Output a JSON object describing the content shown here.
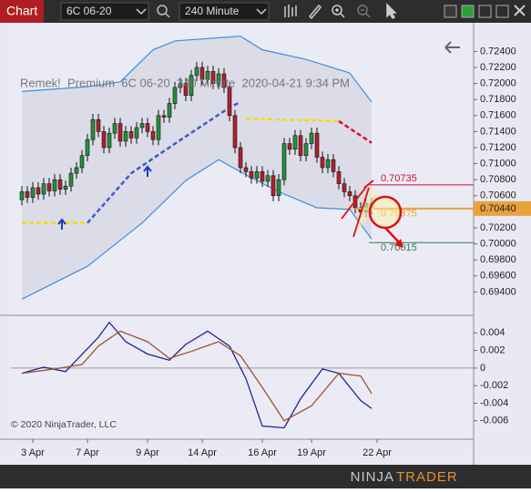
{
  "toolbar": {
    "tab": "Chart",
    "instrument": "6C 06-20",
    "interval": "240 Minute"
  },
  "chart_data": [
    {
      "type": "candlestick",
      "title": "Remek!  Premium  6C 06-20  240 Minute  2020-04-21 9:34 PM",
      "copyright": "© 2020 NinjaTrader, LLC",
      "open": [
        0.7055,
        0.7065,
        0.7058,
        0.707,
        0.7062,
        0.7075,
        0.7066,
        0.708,
        0.7068,
        0.7072,
        0.7088,
        0.7095,
        0.711,
        0.713,
        0.7155,
        0.714,
        0.712,
        0.7138,
        0.715,
        0.7128,
        0.714,
        0.7132,
        0.7145,
        0.715,
        0.714,
        0.713,
        0.716,
        0.7158,
        0.7175,
        0.7195,
        0.72,
        0.7185,
        0.721,
        0.722,
        0.7205,
        0.7215,
        0.72,
        0.7212,
        0.7195,
        0.716,
        0.712,
        0.7095,
        0.709,
        0.7082,
        0.709,
        0.7078,
        0.7085,
        0.706,
        0.708,
        0.7125,
        0.7118,
        0.7135,
        0.711,
        0.7125,
        0.7138,
        0.7108,
        0.7095,
        0.7105,
        0.709,
        0.7075,
        0.7065,
        0.706,
        0.7045,
        0.704,
        0.705
      ],
      "high": [
        0.7072,
        0.7072,
        0.7077,
        0.7077,
        0.7082,
        0.7082,
        0.7087,
        0.7087,
        0.7079,
        0.7095,
        0.7102,
        0.7117,
        0.7137,
        0.7162,
        0.7162,
        0.7147,
        0.7145,
        0.7157,
        0.7157,
        0.7147,
        0.7147,
        0.7152,
        0.7157,
        0.7157,
        0.7147,
        0.7167,
        0.7167,
        0.7182,
        0.7202,
        0.7207,
        0.7207,
        0.7217,
        0.7227,
        0.7227,
        0.7222,
        0.7222,
        0.7219,
        0.7219,
        0.7202,
        0.7167,
        0.7127,
        0.7102,
        0.7097,
        0.7097,
        0.7097,
        0.7092,
        0.7092,
        0.7087,
        0.7132,
        0.7132,
        0.7142,
        0.7142,
        0.7132,
        0.7145,
        0.7145,
        0.7115,
        0.7112,
        0.7112,
        0.7097,
        0.7082,
        0.7072,
        0.7067,
        0.7052,
        0.7057,
        0.7057
      ],
      "low": [
        0.7048,
        0.7051,
        0.7051,
        0.7055,
        0.7055,
        0.7059,
        0.7059,
        0.7061,
        0.7061,
        0.7065,
        0.7081,
        0.7088,
        0.7103,
        0.7123,
        0.7133,
        0.7113,
        0.7113,
        0.7131,
        0.7121,
        0.7121,
        0.7125,
        0.7125,
        0.7138,
        0.7133,
        0.7123,
        0.7123,
        0.7151,
        0.7151,
        0.7168,
        0.7188,
        0.7178,
        0.7178,
        0.7203,
        0.7198,
        0.7198,
        0.7193,
        0.7193,
        0.7188,
        0.7153,
        0.7113,
        0.7088,
        0.7083,
        0.7075,
        0.7075,
        0.7071,
        0.7071,
        0.7053,
        0.7053,
        0.7073,
        0.7111,
        0.7111,
        0.7103,
        0.7103,
        0.7118,
        0.7101,
        0.7088,
        0.7088,
        0.7083,
        0.7068,
        0.7058,
        0.7053,
        0.7038,
        0.7033,
        0.7033,
        0.7037
      ],
      "close": [
        0.7065,
        0.7058,
        0.707,
        0.7062,
        0.7075,
        0.7066,
        0.708,
        0.7068,
        0.7072,
        0.7088,
        0.7095,
        0.711,
        0.713,
        0.7155,
        0.714,
        0.712,
        0.7138,
        0.715,
        0.7128,
        0.714,
        0.7132,
        0.7145,
        0.715,
        0.714,
        0.713,
        0.716,
        0.7158,
        0.7175,
        0.7195,
        0.72,
        0.7185,
        0.721,
        0.722,
        0.7205,
        0.7215,
        0.72,
        0.7212,
        0.7195,
        0.716,
        0.712,
        0.7095,
        0.709,
        0.7082,
        0.709,
        0.7078,
        0.7085,
        0.706,
        0.708,
        0.7125,
        0.7118,
        0.7135,
        0.711,
        0.7125,
        0.7138,
        0.7108,
        0.7095,
        0.7105,
        0.709,
        0.7075,
        0.7065,
        0.706,
        0.7045,
        0.704,
        0.705,
        0.7044
      ],
      "up_color": "#23913c",
      "down_color": "#b3202c",
      "band_fill": "#dcdce8",
      "lines": [
        {
          "color": "#3d8fe0",
          "width": 1.2,
          "dash": false,
          "x": [
            0,
            12,
            18,
            24,
            28,
            40,
            44,
            52,
            60,
            64
          ],
          "values": [
            0.719,
            0.7196,
            0.7202,
            0.7242,
            0.7253,
            0.7259,
            0.7242,
            0.723,
            0.7213,
            0.7177
          ]
        },
        {
          "color": "#3d8fe0",
          "width": 1.2,
          "dash": false,
          "x": [
            0,
            12,
            22,
            30,
            36,
            41,
            47,
            54,
            60,
            64
          ],
          "values": [
            0.6931,
            0.6972,
            0.7026,
            0.7079,
            0.7105,
            0.7086,
            0.7065,
            0.7045,
            0.7043,
            0.7006
          ]
        },
        {
          "color": "#f0e000",
          "width": 2.5,
          "dash": true,
          "x": [
            0,
            12,
            null,
            41,
            58
          ],
          "values": [
            0.7026,
            0.7026,
            null,
            0.7156,
            0.7153
          ]
        },
        {
          "color": "#3a5bd0",
          "width": 2.5,
          "dash": true,
          "x": [
            12,
            20,
            30,
            38,
            40
          ],
          "values": [
            0.7026,
            0.7088,
            0.7134,
            0.717,
            0.7177
          ]
        },
        {
          "color": "#d8102e",
          "width": 2.5,
          "dash": true,
          "x": [
            58,
            64
          ],
          "values": [
            0.7153,
            0.7126
          ]
        }
      ],
      "current_price": {
        "value": 0.7044,
        "label": "0.70440",
        "color": "#e8a33d"
      },
      "levels": [
        {
          "value": 0.70735,
          "color": "#c8102e",
          "line": true
        },
        {
          "value": 0.70375,
          "color": "#e8a33d",
          "line": false
        },
        {
          "value": 0.70015,
          "color": "#2e7d4f",
          "line": true
        }
      ],
      "xlim": [
        -2,
        82
      ],
      "ylim": [
        0.6912,
        0.727
      ],
      "xticks": [
        {
          "value": 2,
          "label": "3 Apr"
        },
        {
          "value": 12,
          "label": "7 Apr"
        },
        {
          "value": 23,
          "label": "9 Apr"
        },
        {
          "value": 33,
          "label": "14 Apr"
        },
        {
          "value": 44,
          "label": "16 Apr"
        },
        {
          "value": 53,
          "label": "19 Apr"
        },
        {
          "value": 65,
          "label": "22 Apr"
        }
      ],
      "yticks": [
        {
          "value": 0.724,
          "label": "0.72400"
        },
        {
          "value": 0.722,
          "label": "0.72200"
        },
        {
          "value": 0.72,
          "label": "0.72000"
        },
        {
          "value": 0.718,
          "label": "0.71800"
        },
        {
          "value": 0.716,
          "label": "0.71600"
        },
        {
          "value": 0.714,
          "label": "0.71400"
        },
        {
          "value": 0.712,
          "label": "0.71200"
        },
        {
          "value": 0.71,
          "label": "0.71000"
        },
        {
          "value": 0.708,
          "label": "0.70800"
        },
        {
          "value": 0.706,
          "label": "0.70600"
        },
        {
          "value": 0.704,
          "label": "0.70400"
        },
        {
          "value": 0.702,
          "label": "0.70200"
        },
        {
          "value": 0.7,
          "label": "0.70000"
        },
        {
          "value": 0.698,
          "label": "0.69800"
        },
        {
          "value": 0.696,
          "label": "0.69600"
        },
        {
          "value": 0.694,
          "label": "0.69400"
        }
      ],
      "grid": false
    },
    {
      "type": "line",
      "lines": [
        {
          "color": "#23238f",
          "width": 1.3,
          "dash": false,
          "x": [
            0,
            4,
            8,
            10,
            14,
            16,
            19,
            23,
            27,
            30,
            34,
            38,
            41,
            44,
            48,
            51,
            55,
            58,
            62,
            64
          ],
          "values": [
            -0.0006,
            0.0001,
            -0.0004,
            0.0009,
            0.0035,
            0.0052,
            0.003,
            0.0016,
            0.0009,
            0.0027,
            0.0042,
            0.0025,
            -0.0012,
            -0.0066,
            -0.0068,
            -0.0035,
            -0.0001,
            -0.0006,
            -0.0037,
            -0.0046
          ]
        },
        {
          "color": "#a0522d",
          "width": 1.3,
          "dash": false,
          "x": [
            0,
            6,
            11,
            14,
            18,
            23,
            27,
            31,
            36,
            40,
            44,
            48,
            53,
            58,
            62,
            64
          ],
          "values": [
            -0.0006,
            -0.0001,
            0.0004,
            0.0025,
            0.0042,
            0.003,
            0.0011,
            0.0019,
            0.003,
            0.0014,
            -0.0022,
            -0.006,
            -0.0043,
            -0.0006,
            -0.0009,
            -0.0029
          ]
        }
      ],
      "xlim": [
        -2,
        82
      ],
      "ylim": [
        -0.0081,
        0.0059
      ],
      "yticks": [
        0.004,
        0.002,
        0,
        -0.002,
        -0.004,
        -0.006
      ],
      "grid": false
    }
  ],
  "footer": {
    "brand_1": "NINJA",
    "brand_2": "TRADER"
  }
}
